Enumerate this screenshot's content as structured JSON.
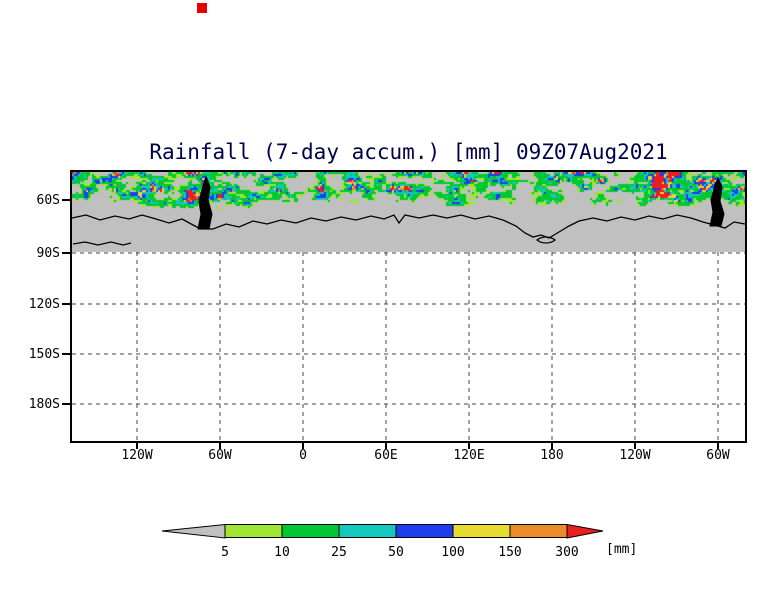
{
  "colors": {
    "title": "#00004b",
    "land_gray": "#c0c0c0",
    "coastline": "#000000",
    "grid_line": "#444444",
    "frame": "#000000",
    "red_mark": "#e60000"
  },
  "chart_data": {
    "type": "heatmap",
    "title": "Rainfall (7-day accum.) [mm] 09Z07Aug2021",
    "variable": "Rainfall",
    "accumulation": "7-day accum.",
    "units": "mm",
    "valid_label": "09Z07Aug2021",
    "y_tick_labels": [
      "60S",
      "90S",
      "120S",
      "150S",
      "180S"
    ],
    "x_tick_labels": [
      "120W",
      "60W",
      "0",
      "60E",
      "120E",
      "180",
      "120W",
      "60W"
    ],
    "grid_style": "dashed",
    "legend_position": "bottom",
    "colorbar": {
      "units_label": "[mm]",
      "thresholds": [
        5,
        10,
        25,
        50,
        100,
        150,
        300
      ],
      "colors": [
        "#c0c0c0",
        "#a0e632",
        "#00c832",
        "#14c8be",
        "#1e3cf0",
        "#e6dc32",
        "#eb8c28",
        "#eb1e1e"
      ]
    },
    "shading_note": "Patchy rainfall shading band near 60S; solid gray = below 5 mm and Antarctic interior; black coastline across gray band"
  }
}
